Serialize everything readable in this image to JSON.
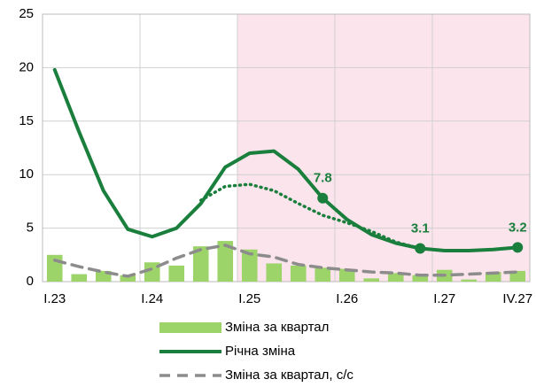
{
  "chart_data": {
    "type": "combo",
    "categories": [
      "I.23",
      null,
      null,
      null,
      "I.24",
      null,
      null,
      null,
      "I.25",
      null,
      null,
      null,
      "I.26",
      null,
      null,
      null,
      "I.27",
      null,
      null,
      "IV.27"
    ],
    "ylim": [
      0,
      25
    ],
    "yticks": [
      0,
      5,
      10,
      15,
      20,
      25
    ],
    "grid": true,
    "shaded_from": "I.25",
    "shade_color": "#fce4ec",
    "series": [
      {
        "name": "Зміна за квартал",
        "kind": "bar",
        "color": "#9dd46a",
        "values": [
          2.5,
          0.7,
          1.0,
          0.6,
          1.8,
          1.5,
          3.3,
          3.8,
          3.0,
          1.7,
          1.5,
          1.3,
          1.2,
          0.3,
          0.8,
          0.6,
          1.1,
          0.2,
          0.9,
          1.0
        ]
      },
      {
        "name": "Річна зміна",
        "kind": "line",
        "color": "#1a7f3c",
        "marked": [
          11,
          15,
          19
        ],
        "values": [
          19.8,
          14.0,
          8.5,
          4.9,
          4.2,
          5.0,
          7.3,
          10.7,
          12.0,
          12.2,
          10.5,
          7.8,
          5.8,
          4.4,
          3.6,
          3.1,
          2.9,
          2.9,
          3.0,
          3.2
        ]
      },
      {
        "kind": "dotted",
        "color": "#1a7f3c",
        "values": [
          null,
          null,
          null,
          null,
          null,
          null,
          7.6,
          8.9,
          9.1,
          8.5,
          7.3,
          6.2,
          5.5,
          4.7,
          3.7,
          3.1,
          null,
          null,
          null,
          null
        ]
      },
      {
        "name": "Зміна за квартал, с/с",
        "kind": "dashed",
        "color": "#8c8c8c",
        "values": [
          2.0,
          1.4,
          0.9,
          0.5,
          1.2,
          2.2,
          3.0,
          3.4,
          2.6,
          2.3,
          1.6,
          1.3,
          1.1,
          0.9,
          0.8,
          0.6,
          0.6,
          0.7,
          0.8,
          0.9
        ]
      }
    ]
  }
}
